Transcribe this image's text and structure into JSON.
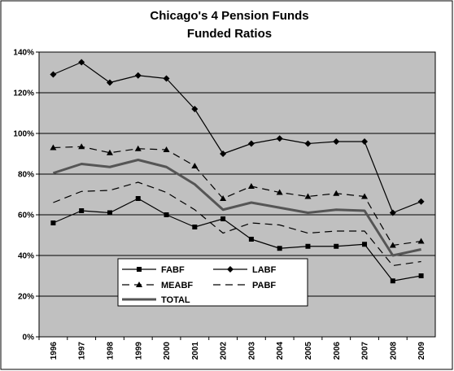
{
  "chart_data": {
    "type": "line",
    "title_lines": [
      "Chicago's 4 Pension Funds",
      "Funded Ratios"
    ],
    "xlabel": "",
    "ylabel": "",
    "categories": [
      "1996",
      "1997",
      "1998",
      "1999",
      "2000",
      "2001",
      "2002",
      "2003",
      "2004",
      "2005",
      "2006",
      "2007",
      "2008",
      "2009"
    ],
    "ylim": [
      0,
      140
    ],
    "y_ticks": [
      "0%",
      "20%",
      "40%",
      "60%",
      "80%",
      "100%",
      "120%",
      "140%"
    ],
    "y_tick_values": [
      0,
      20,
      40,
      60,
      80,
      100,
      120,
      140
    ],
    "grid": true,
    "legend_position": "bottom-left",
    "series": [
      {
        "name": "FABF",
        "marker": "square",
        "dash": "solid",
        "color": "#000000",
        "weight": "thin",
        "values": [
          56,
          62,
          61,
          68,
          60,
          54,
          58,
          48,
          43.5,
          44.5,
          44.5,
          45.5,
          27.5,
          30
        ]
      },
      {
        "name": "LABF",
        "marker": "diamond",
        "dash": "solid",
        "color": "#000000",
        "weight": "thin",
        "values": [
          129,
          135,
          125,
          128.5,
          127,
          112,
          90,
          95,
          97.5,
          95,
          96,
          96,
          61,
          66.5
        ]
      },
      {
        "name": "MEABF",
        "marker": "triangle",
        "dash": "dashed",
        "color": "#000000",
        "weight": "thin",
        "values": [
          93,
          93.5,
          90.5,
          92.5,
          92,
          84,
          68,
          74,
          71,
          69,
          70.5,
          69,
          45,
          47
        ]
      },
      {
        "name": "PABF",
        "marker": "none",
        "dash": "dashed",
        "color": "#000000",
        "weight": "thin",
        "values": [
          66,
          71.5,
          72,
          76,
          71,
          62.5,
          51,
          56,
          55,
          51,
          52,
          52,
          35,
          37
        ]
      },
      {
        "name": "TOTAL",
        "marker": "none",
        "dash": "solid",
        "color": "#555555",
        "weight": "thick",
        "values": [
          80.5,
          85,
          83.5,
          87,
          83.5,
          75,
          62.5,
          66,
          63.5,
          61,
          62.5,
          62,
          40,
          43
        ]
      }
    ],
    "plot_background": "#c0c0c0",
    "gridline_color": "#000000"
  }
}
